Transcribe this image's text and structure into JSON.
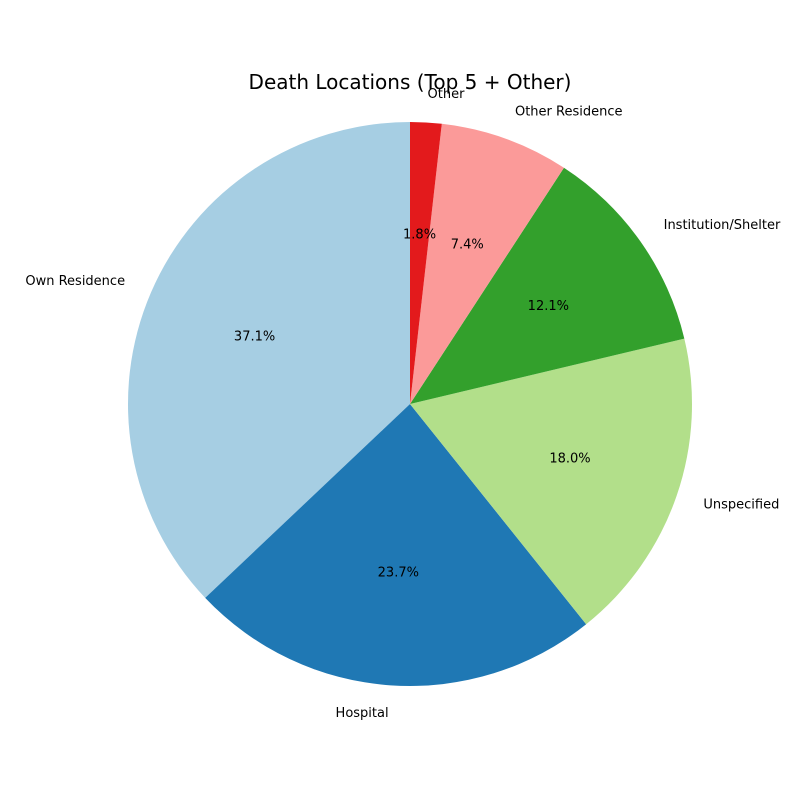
{
  "chart_data": {
    "type": "pie",
    "title": "Death Locations (Top 5 + Other)",
    "categories": [
      "Own Residence",
      "Hospital",
      "Unspecified",
      "Institution/Shelter",
      "Other Residence",
      "Other"
    ],
    "values": [
      37.1,
      23.7,
      18.0,
      12.1,
      7.4,
      1.8
    ],
    "percent_labels": [
      "37.1%",
      "23.7%",
      "18.0%",
      "12.1%",
      "7.4%",
      "1.8%"
    ],
    "colors": [
      "#a6cee3",
      "#1f78b4",
      "#b2df8a",
      "#33a02c",
      "#fb9a99",
      "#e31a1c"
    ],
    "start_angle_deg": 90,
    "direction": "counterclockwise",
    "legend": "none"
  }
}
